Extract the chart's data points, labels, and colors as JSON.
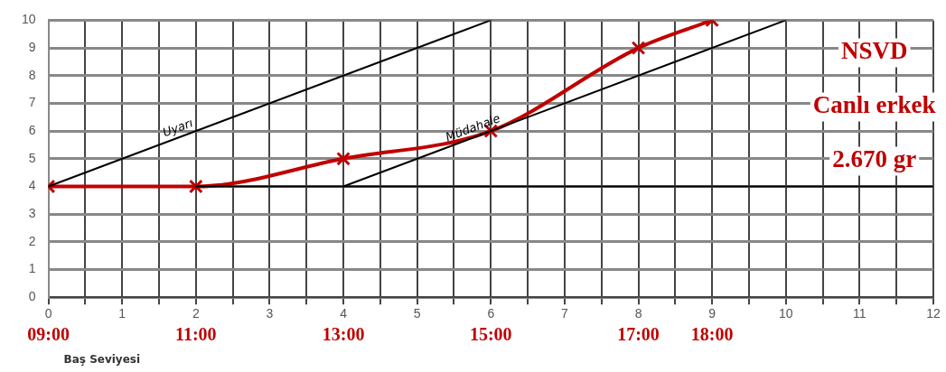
{
  "chart_data": {
    "type": "line",
    "xlabel": "Baş Seviyesi",
    "xlim": [
      0,
      12
    ],
    "ylim": [
      0,
      10
    ],
    "xticks": [
      0,
      {
        "value": 0.5,
        "label": null
      },
      1,
      {
        "value": 1.5,
        "label": null
      },
      2,
      {
        "value": 2.5,
        "label": null
      },
      3,
      {
        "value": 3.5,
        "label": null
      },
      4,
      {
        "value": 4.5,
        "label": null
      },
      5,
      {
        "value": 5.5,
        "label": null
      },
      6,
      {
        "value": 6.5,
        "label": null
      },
      7,
      {
        "value": 7.5,
        "label": null
      },
      8,
      {
        "value": 8.5,
        "label": null
      },
      9,
      {
        "value": 9.5,
        "label": null
      },
      10,
      {
        "value": 10.5,
        "label": null
      },
      11,
      {
        "value": 11.5,
        "label": null
      },
      12
    ],
    "yticks": [
      0,
      1,
      2,
      3,
      4,
      5,
      6,
      7,
      8,
      9,
      10
    ],
    "grid": true,
    "legend": false,
    "line_style": "solid",
    "series": [
      {
        "name": "Uyarı",
        "color": "#000000",
        "marker": "none",
        "x": [
          0,
          6
        ],
        "values": [
          4,
          10
        ]
      },
      {
        "name": "Müdahale",
        "color": "#000000",
        "marker": "none",
        "x": [
          4,
          10
        ],
        "values": [
          4,
          10
        ]
      },
      {
        "color": "#000000",
        "marker": "none",
        "x": [
          2,
          12
        ],
        "values": [
          4,
          4
        ]
      },
      {
        "color": "#c00000",
        "marker": "cross",
        "x": [
          0,
          2,
          4,
          6,
          8,
          9
        ],
        "values": [
          4,
          4,
          5,
          6,
          9,
          10
        ]
      }
    ],
    "annotations": [
      "NSVD",
      "Canlı erkek",
      "2.670 gr"
    ],
    "x2lim": [
      9,
      21
    ],
    "x2ticks": [
      {
        "value": 9,
        "label": "09:00"
      },
      {
        "value": 11,
        "label": "11:00"
      },
      {
        "value": 13,
        "label": "13:00"
      },
      {
        "value": 15,
        "label": "15:00"
      },
      {
        "value": 17,
        "label": "17:00"
      },
      {
        "value": 18,
        "label": "18:00"
      }
    ]
  }
}
